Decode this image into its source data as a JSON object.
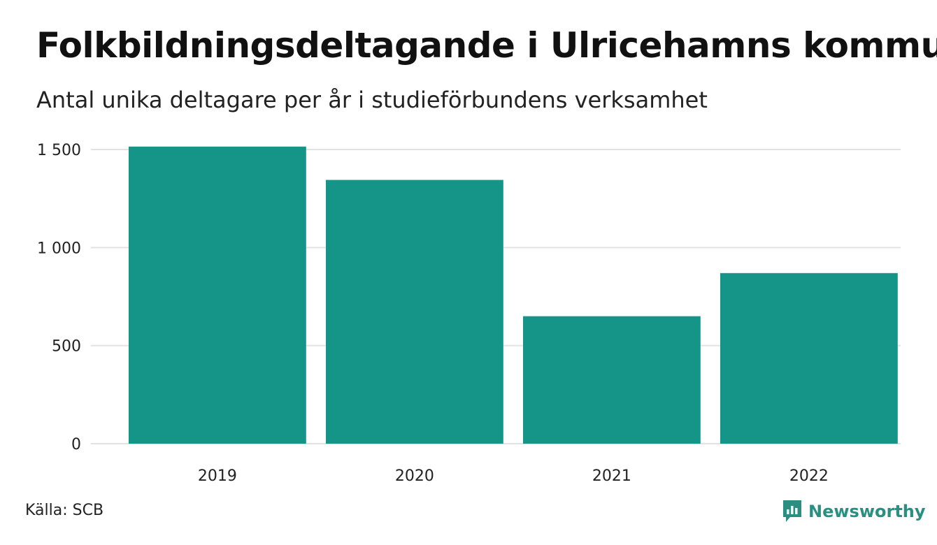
{
  "header": {
    "title": "Folkbildningsdeltagande i Ulricehamns kommun",
    "subtitle": "Antal unika deltagare per år i studieförbundens verksamhet"
  },
  "footer": {
    "source": "Källa: SCB",
    "brand": "Newsworthy",
    "brand_icon": "newsworthy-logo-icon"
  },
  "colors": {
    "bar": "#149587",
    "grid": "#e2e2e2",
    "brand": "#2a8f80"
  },
  "chart_data": {
    "type": "bar",
    "categories": [
      "2019",
      "2020",
      "2021",
      "2022"
    ],
    "values": [
      1515,
      1345,
      650,
      870
    ],
    "ylim": [
      0,
      1500
    ],
    "yticks": [
      0,
      500,
      1000,
      1500
    ],
    "ytick_labels": [
      "0",
      "500",
      "1 000",
      "1 500"
    ],
    "grid": true
  }
}
